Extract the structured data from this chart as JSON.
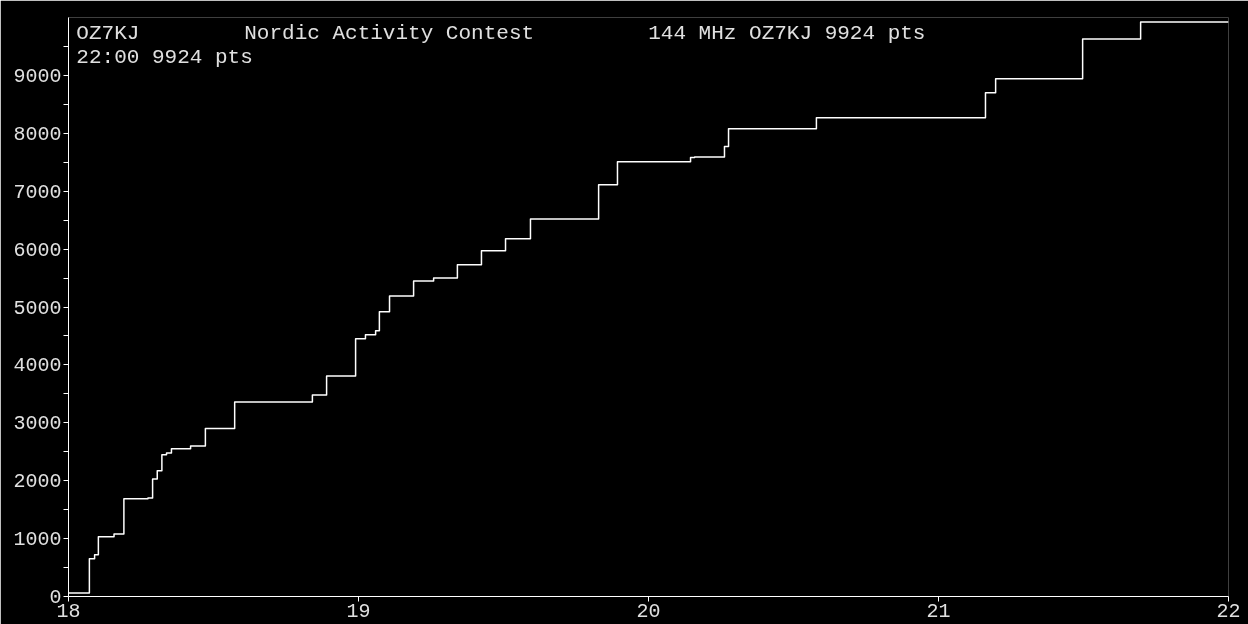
{
  "chart_data": {
    "type": "step",
    "title": "Nordic Activity Contest",
    "annotations": [
      "OZ7KJ",
      "144 MHz  OZ7KJ  9924 pts",
      "22:00  9924 pts"
    ],
    "x": [
      18.0,
      18.072,
      18.09,
      18.103,
      18.157,
      18.191,
      18.274,
      18.29,
      18.306,
      18.322,
      18.338,
      18.355,
      18.421,
      18.472,
      18.573,
      18.841,
      18.89,
      18.99,
      19.024,
      19.059,
      19.072,
      19.107,
      19.19,
      19.259,
      19.341,
      19.424,
      19.507,
      19.593,
      19.828,
      19.893,
      20.145,
      20.159,
      20.262,
      20.276,
      20.579,
      21.162,
      21.197,
      21.497,
      21.697,
      22.0
    ],
    "series": [
      {
        "color": "#ffffff",
        "values": [
          60,
          650,
          720,
          1030,
          1080,
          1690,
          1700,
          2030,
          2170,
          2450,
          2480,
          2550,
          2600,
          2900,
          3360,
          3480,
          3810,
          4450,
          4520,
          4590,
          4920,
          5190,
          5450,
          5500,
          5730,
          5970,
          6180,
          6520,
          7110,
          7510,
          7580,
          7590,
          7770,
          8080,
          8270,
          8700,
          8940,
          9630,
          9924,
          9924
        ]
      }
    ],
    "xlim": [
      18,
      22
    ],
    "xticks": [
      18,
      19,
      20,
      21,
      22
    ],
    "ylim": [
      0,
      10000
    ],
    "yticks": [
      0,
      {
        "value": 500,
        "label": null
      },
      1000,
      {
        "value": 1500,
        "label": null
      },
      2000,
      {
        "value": 2500,
        "label": null
      },
      3000,
      {
        "value": 3500,
        "label": null
      },
      4000,
      {
        "value": 4500,
        "label": null
      },
      5000,
      {
        "value": 5500,
        "label": null
      },
      6000,
      {
        "value": 6500,
        "label": null
      },
      7000,
      {
        "value": 7500,
        "label": null
      },
      8000,
      {
        "value": 8500,
        "label": null
      },
      9000,
      {
        "value": 9500,
        "label": null
      }
    ],
    "grid": false
  }
}
